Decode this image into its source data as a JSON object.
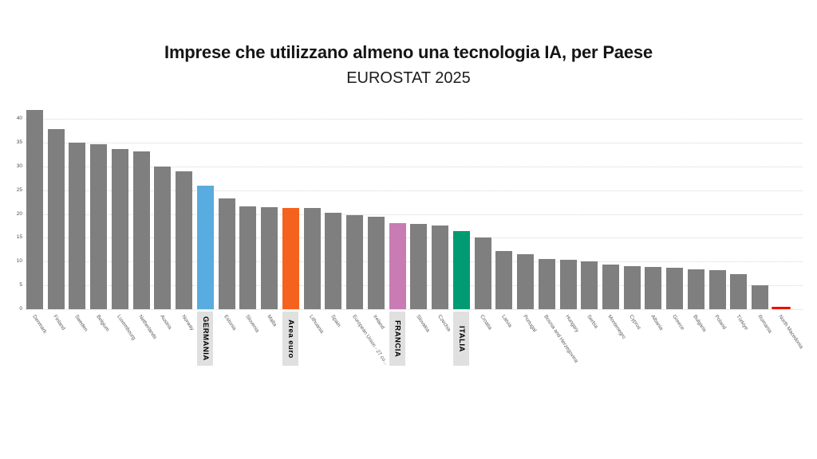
{
  "chart_data": {
    "type": "bar",
    "title": "Imprese che utilizzano almeno una tecnologia IA, per Paese",
    "subtitle": "EUROSTAT 2025",
    "xlabel": "",
    "ylabel": "",
    "ylim": [
      0,
      43
    ],
    "yticks": [
      0,
      5,
      10,
      15,
      20,
      25,
      30,
      35,
      40
    ],
    "grid": "horizontal-dotted",
    "legend": "none",
    "background": "#ffffff",
    "bar_color_default": "#7f7f7f",
    "grid_color": "#d6d6d6",
    "tick_label_color": "#4d4d4d",
    "x_label_color": "#595959",
    "highlight_box_bg": "#e0e0e0",
    "categories": [
      "Denmark",
      "Finland",
      "Sweden",
      "Belgium",
      "Luxembourg",
      "Netherlands",
      "Austria",
      "Norway",
      "GERMANIA",
      "Estonia",
      "Slovenia",
      "Malta",
      "Area euro",
      "Lithuania",
      "Spain",
      "European Union - 27 co...",
      "Ireland",
      "FRANCIA",
      "Slovakia",
      "Czechia",
      "ITALIA",
      "Croatia",
      "Latvia",
      "Portugal",
      "Bosnia and Herzegovina",
      "Hungary",
      "Serbia",
      "Montenegro",
      "Cyprus",
      "Albania",
      "Greece",
      "Bulgaria",
      "Poland",
      "Türkiye",
      "Romania",
      "North Macedonia"
    ],
    "values": [
      41.9,
      37.8,
      35.0,
      34.6,
      33.6,
      33.2,
      30.0,
      28.9,
      25.9,
      23.3,
      21.6,
      21.4,
      21.3,
      21.2,
      20.2,
      19.8,
      19.4,
      18.1,
      17.9,
      17.6,
      16.4,
      15.1,
      12.2,
      11.6,
      10.6,
      10.3,
      10.0,
      9.3,
      9.1,
      8.8,
      8.7,
      8.4,
      8.2,
      7.3,
      5.1,
      0.5
    ],
    "highlights": {
      "GERMANIA": {
        "color": "#58ace0",
        "boxed": true
      },
      "Area euro": {
        "color": "#f4621d",
        "boxed": true
      },
      "FRANCIA": {
        "color": "#c87cb3",
        "boxed": true
      },
      "ITALIA": {
        "color": "#009b72",
        "boxed": true
      },
      "North Macedonia": {
        "color": "#ec1000",
        "boxed": false,
        "rounded": true
      }
    }
  }
}
